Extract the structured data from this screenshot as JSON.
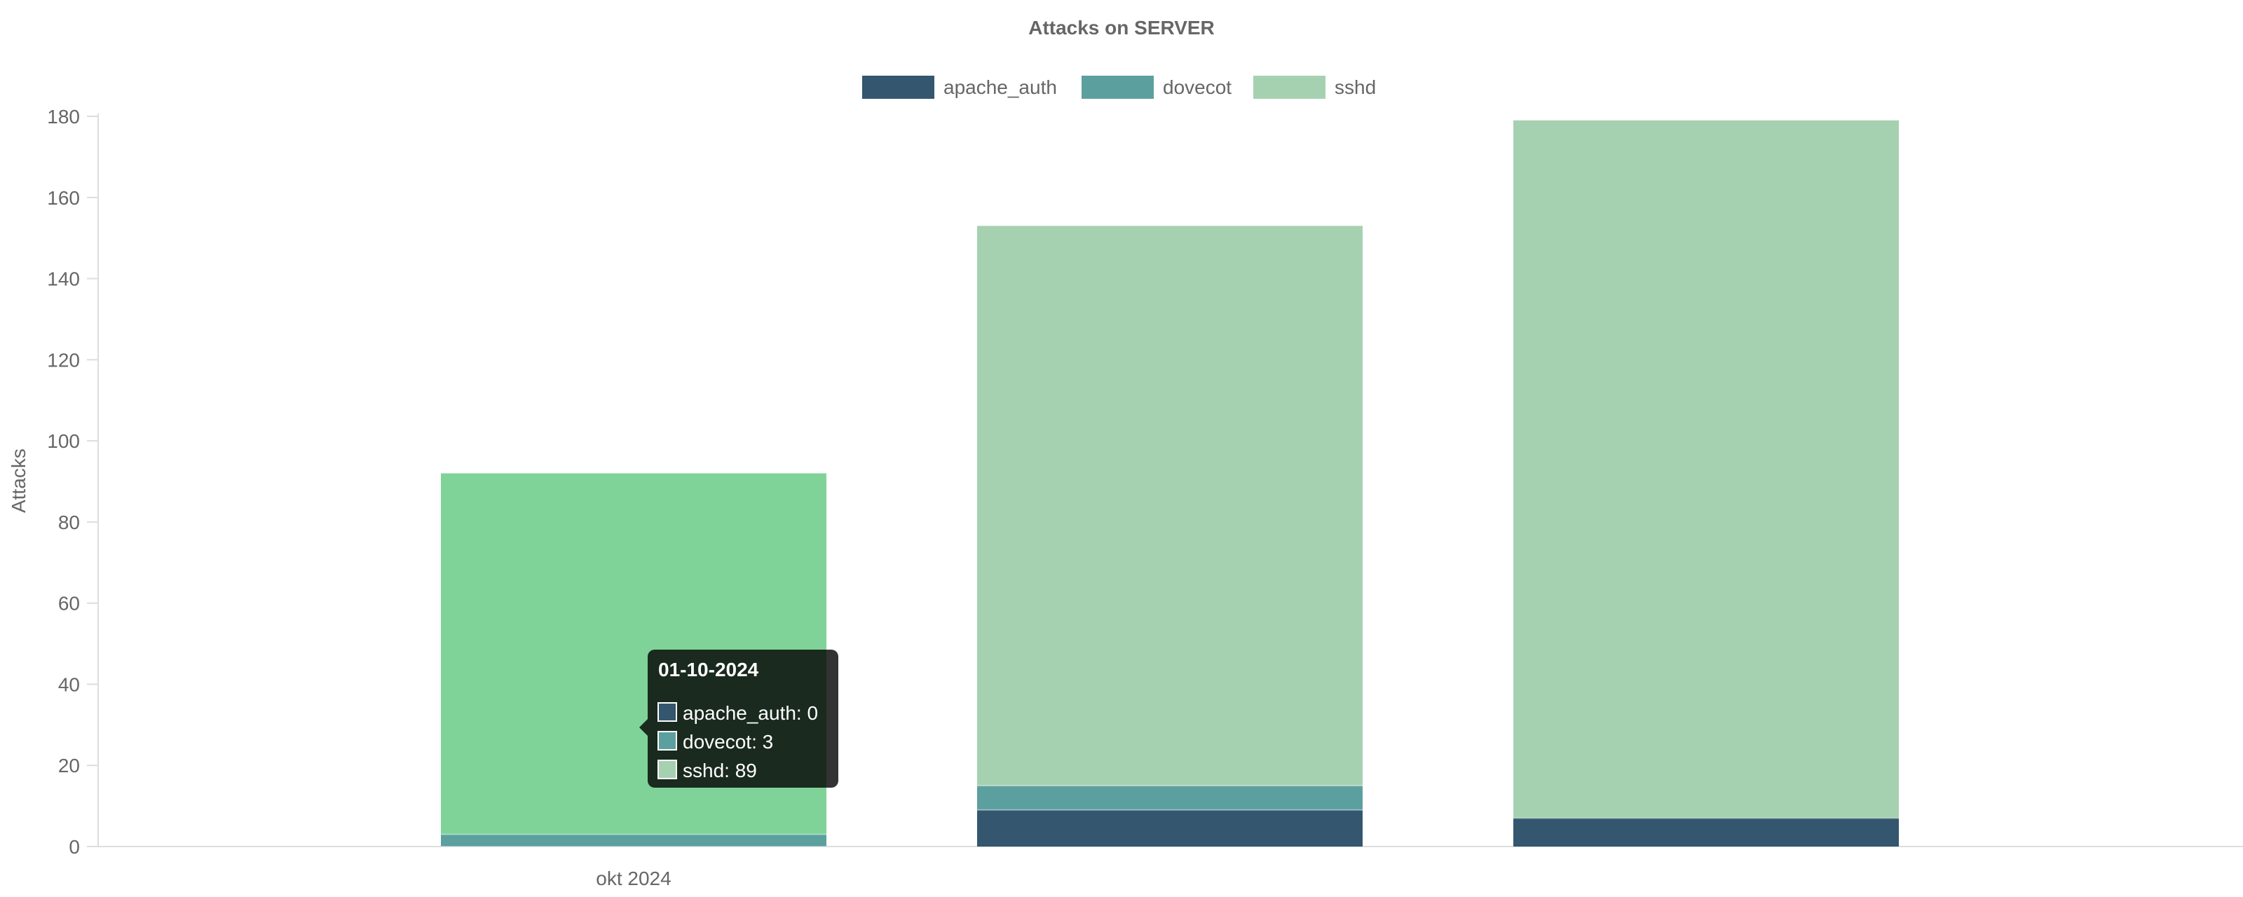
{
  "chart_data": {
    "type": "bar",
    "stacked": true,
    "title": "Attacks on SERVER",
    "ylabel": "Attacks",
    "xlabel": "",
    "ylim": [
      0,
      180
    ],
    "yticks": [
      0,
      20,
      40,
      60,
      80,
      100,
      120,
      140,
      160,
      180
    ],
    "categories": [
      "okt 2024",
      "",
      ""
    ],
    "grid": false,
    "legend_position": "top",
    "series": [
      {
        "name": "apache_auth",
        "color": "#34566f",
        "values": [
          0,
          9,
          7
        ]
      },
      {
        "name": "dovecot",
        "color": "#5ba09f",
        "values": [
          3,
          6,
          0
        ]
      },
      {
        "name": "sshd",
        "color": "#a6d1b1",
        "values": [
          89,
          138,
          172
        ]
      }
    ],
    "highlight": {
      "category_index": 0,
      "color": "#80d398"
    },
    "tooltip": {
      "title": "01-10-2024",
      "lines": [
        "apache_auth: 0",
        "dovecot: 3",
        "sshd: 89"
      ]
    }
  }
}
